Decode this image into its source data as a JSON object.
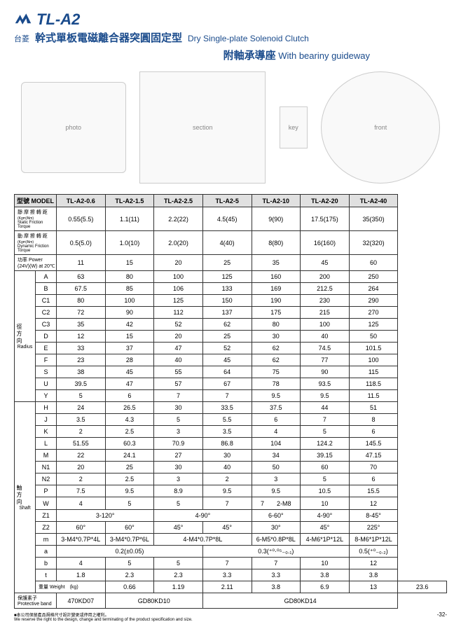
{
  "header": {
    "model_id": "TL-A2",
    "brand": "台菱",
    "title_cn": "幹式單板電磁離合器突圓固定型",
    "title_en": "Dry Single-plate Solenoid Clutch",
    "sub_cn": "附軸承導座",
    "sub_en": "With beariny guideway"
  },
  "table": {
    "model_header": "型號 MODEL",
    "models": [
      "TL-A2-0.6",
      "TL-A2-1.5",
      "TL-A2-2.5",
      "TL-A2-5",
      "TL-A2-10",
      "TL-A2-20",
      "TL-A2-40"
    ],
    "static_label_cn": "靜 摩 擦 轉 距",
    "static_label_unit": "(Kgm)Nm)",
    "static_label_en": "Static Friction Torque",
    "static": [
      "0.55(5.5)",
      "1.1(11)",
      "2.2(22)",
      "4.5(45)",
      "9(90)",
      "17.5(175)",
      "35(350)"
    ],
    "dynamic_label_cn": "動 摩 擦 轉 距",
    "dynamic_label_unit": "(Kgm)Nm)",
    "dynamic_label_en": "Dynamic Friction Torque",
    "dynamic": [
      "0.5(5.0)",
      "1.0(10)",
      "2.0(20)",
      "4(40)",
      "8(80)",
      "16(160)",
      "32(320)"
    ],
    "power_label": "功率 Power (24V)(W) at 20℃",
    "power": [
      "11",
      "15",
      "20",
      "25",
      "35",
      "45",
      "60"
    ],
    "radius_label_cn": "徑方向",
    "radius_label_en": "Radius",
    "radius_rows": [
      {
        "sym": "A",
        "v": [
          "63",
          "80",
          "100",
          "125",
          "160",
          "200",
          "250"
        ]
      },
      {
        "sym": "B",
        "v": [
          "67.5",
          "85",
          "106",
          "133",
          "169",
          "212.5",
          "264"
        ]
      },
      {
        "sym": "C1",
        "v": [
          "80",
          "100",
          "125",
          "150",
          "190",
          "230",
          "290"
        ]
      },
      {
        "sym": "C2",
        "v": [
          "72",
          "90",
          "112",
          "137",
          "175",
          "215",
          "270"
        ]
      },
      {
        "sym": "C3",
        "v": [
          "35",
          "42",
          "52",
          "62",
          "80",
          "100",
          "125"
        ]
      },
      {
        "sym": "D",
        "v": [
          "12",
          "15",
          "20",
          "25",
          "30",
          "40",
          "50"
        ]
      },
      {
        "sym": "E",
        "v": [
          "33",
          "37",
          "47",
          "52",
          "62",
          "74.5",
          "101.5"
        ]
      },
      {
        "sym": "F",
        "v": [
          "23",
          "28",
          "40",
          "45",
          "62",
          "77",
          "100"
        ]
      },
      {
        "sym": "S",
        "v": [
          "38",
          "45",
          "55",
          "64",
          "75",
          "90",
          "115"
        ]
      },
      {
        "sym": "U",
        "v": [
          "39.5",
          "47",
          "57",
          "67",
          "78",
          "93.5",
          "118.5"
        ]
      },
      {
        "sym": "Y",
        "v": [
          "5",
          "6",
          "7",
          "7",
          "9.5",
          "9.5",
          "11.5"
        ]
      }
    ],
    "shaft_label_cn": "軸方向",
    "shaft_label_en": "Shaft",
    "shaft_rows": [
      {
        "sym": "H",
        "v": [
          "24",
          "26.5",
          "30",
          "33.5",
          "37.5",
          "44",
          "51"
        ]
      },
      {
        "sym": "J",
        "v": [
          "3.5",
          "4.3",
          "5",
          "5.5",
          "6",
          "7",
          "8"
        ]
      },
      {
        "sym": "K",
        "v": [
          "2",
          "2.5",
          "3",
          "3.5",
          "4",
          "5",
          "6"
        ]
      },
      {
        "sym": "L",
        "v": [
          "51.55",
          "60.3",
          "70.9",
          "86.8",
          "104",
          "124.2",
          "145.5"
        ]
      },
      {
        "sym": "M",
        "v": [
          "22",
          "24.1",
          "27",
          "30",
          "34",
          "39.15",
          "47.15"
        ]
      },
      {
        "sym": "N1",
        "v": [
          "20",
          "25",
          "30",
          "40",
          "50",
          "60",
          "70"
        ]
      },
      {
        "sym": "N2",
        "v": [
          "2",
          "2.5",
          "3",
          "2",
          "3",
          "5",
          "6"
        ]
      },
      {
        "sym": "P",
        "v": [
          "7.5",
          "9.5",
          "8.9",
          "9.5",
          "9.5",
          "10.5",
          "15.5"
        ]
      }
    ],
    "w_row": {
      "sym": "W",
      "v": [
        {
          "span": 1,
          "t": "4"
        },
        {
          "span": 1,
          "t": "5"
        },
        {
          "span": 1,
          "t": "5"
        },
        {
          "span": 1,
          "t": "7"
        },
        {
          "span": 1,
          "t": "7　　2-M8"
        },
        {
          "span": 1,
          "t": "10"
        },
        {
          "span": 1,
          "t": "12"
        }
      ]
    },
    "z1_row": {
      "sym": "Z1",
      "v": [
        {
          "span": 2,
          "t": "3-120°"
        },
        {
          "span": 2,
          "t": "4-90°"
        },
        {
          "span": 1,
          "t": "6-60°"
        },
        {
          "span": 1,
          "t": "4-90°"
        },
        {
          "span": 1,
          "t": "8-45°"
        }
      ]
    },
    "z2_row": {
      "sym": "Z2",
      "v": [
        {
          "span": 1,
          "t": "60°"
        },
        {
          "span": 1,
          "t": "60°"
        },
        {
          "span": 1,
          "t": "45°"
        },
        {
          "span": 1,
          "t": "45°"
        },
        {
          "span": 1,
          "t": "30°"
        },
        {
          "span": 1,
          "t": "45°"
        },
        {
          "span": 1,
          "t": "225°"
        }
      ]
    },
    "m_row": {
      "sym": "m",
      "v": [
        {
          "span": 1,
          "t": "3-M4*0.7P*4L"
        },
        {
          "span": 1,
          "t": "3-M4*0.7P*6L"
        },
        {
          "span": 2,
          "t": "4-M4*0.7P*8L"
        },
        {
          "span": 1,
          "t": "6-M5*0.8P*8L"
        },
        {
          "span": 1,
          "t": "4-M6*1P*12L"
        },
        {
          "span": 1,
          "t": "8-M6*1P*12L"
        }
      ]
    },
    "a_row": {
      "sym": "a",
      "v": [
        {
          "span": 3,
          "t": "0.2(±0.05)"
        },
        {
          "span": 3,
          "t": "0.3(⁺⁰·⁰⁵₋₀.₁)"
        },
        {
          "span": 1,
          "t": "0.5(⁺⁰₋₀.₂)"
        }
      ]
    },
    "b_row": {
      "sym": "b",
      "v": [
        {
          "span": 1,
          "t": "4"
        },
        {
          "span": 1,
          "t": "5"
        },
        {
          "span": 1,
          "t": "5"
        },
        {
          "span": 1,
          "t": "7"
        },
        {
          "span": 1,
          "t": "7"
        },
        {
          "span": 1,
          "t": "10"
        },
        {
          "span": 1,
          "t": "12"
        }
      ]
    },
    "t_row": {
      "sym": "t",
      "v": [
        {
          "span": 1,
          "t": "1.8"
        },
        {
          "span": 1,
          "t": "2.3"
        },
        {
          "span": 1,
          "t": "2.3"
        },
        {
          "span": 1,
          "t": "3.3"
        },
        {
          "span": 1,
          "t": "3.3"
        },
        {
          "span": 1,
          "t": "3.8"
        },
        {
          "span": 1,
          "t": "3.8"
        }
      ]
    },
    "weight_label": "重量 Weight　(kg)",
    "weight": [
      "0.66",
      "1.19",
      "2.11",
      "3.8",
      "6.9",
      "13",
      "23.6"
    ],
    "pband_label": "保護素子 Protective band",
    "pband": [
      {
        "span": 1,
        "t": "470KD07"
      },
      {
        "span": 2,
        "t": "GD80KD10"
      },
      {
        "span": 4,
        "t": "GD80KD14"
      }
    ]
  },
  "footer": {
    "note_cn": "■本公司保留產品規格尺寸設計變更或停用之權利。",
    "note_en": "We reserve the right to the design, change and terminating of the product specification and size.",
    "page": "-32-"
  },
  "colors": {
    "brand": "#1a4b8c",
    "border": "#333333",
    "hdr_bg": "#e0e0e0"
  }
}
